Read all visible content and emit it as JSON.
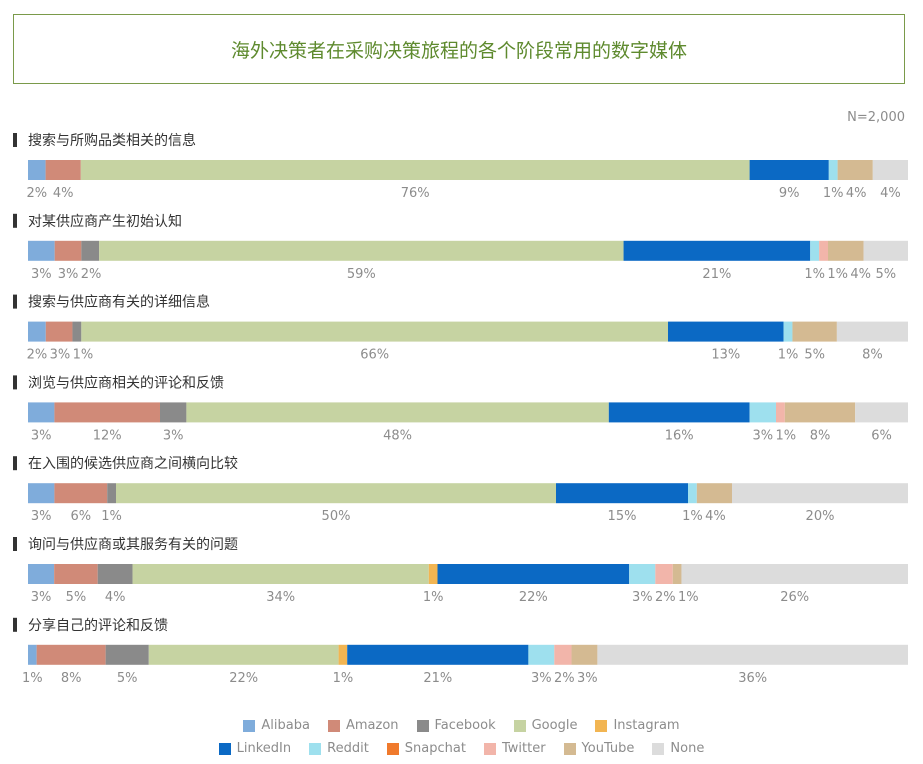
{
  "title": "海外决策者在采购决策旅程的各个阶段常用的数字媒体",
  "note": "N=2,000",
  "chart_data": {
    "type": "bar",
    "orientation": "horizontal",
    "stacked": true,
    "percent": true,
    "title": "海外决策者在采购决策旅程的各个阶段常用的数字媒体",
    "legend_position": "bottom",
    "categories": [
      "搜索与所购品类相关的信息",
      "对某供应商产生初始认知",
      "搜索与供应商有关的详细信息",
      "浏览与供应商相关的评论和反馈",
      "在入围的候选供应商之间横向比较",
      "询问与供应商或其服务有关的问题",
      "分享自己的评论和反馈"
    ],
    "series": [
      {
        "name": "Alibaba",
        "color": "#7facdb",
        "values": [
          2,
          3,
          2,
          3,
          3,
          3,
          1
        ]
      },
      {
        "name": "Amazon",
        "color": "#d08a78",
        "values": [
          4,
          3,
          3,
          12,
          6,
          5,
          8
        ]
      },
      {
        "name": "Facebook",
        "color": "#8a8a8a",
        "values": [
          0,
          2,
          1,
          3,
          1,
          4,
          5
        ]
      },
      {
        "name": "Google",
        "color": "#c6d3a2",
        "values": [
          76,
          59,
          66,
          48,
          50,
          34,
          22
        ]
      },
      {
        "name": "Instagram",
        "color": "#f2b552",
        "values": [
          0,
          0,
          0,
          0,
          0,
          1,
          1
        ]
      },
      {
        "name": "LinkedIn",
        "color": "#0b69c4",
        "values": [
          9,
          21,
          13,
          16,
          15,
          22,
          21
        ]
      },
      {
        "name": "Reddit",
        "color": "#9ee0ee",
        "values": [
          1,
          1,
          1,
          3,
          1,
          3,
          3
        ]
      },
      {
        "name": "Snapchat",
        "color": "#f07a2c",
        "values": [
          0,
          0,
          0,
          0,
          0,
          0,
          0
        ]
      },
      {
        "name": "Twitter",
        "color": "#f2b5aa",
        "values": [
          0,
          1,
          0,
          1,
          0,
          2,
          2
        ]
      },
      {
        "name": "YouTube",
        "color": "#d4ba92",
        "values": [
          4,
          4,
          5,
          8,
          4,
          1,
          3
        ]
      },
      {
        "name": "None",
        "color": "#dcdcdc",
        "values": [
          4,
          5,
          8,
          6,
          20,
          26,
          36
        ]
      }
    ],
    "xlim": [
      0,
      100
    ],
    "xlabel": "",
    "ylabel": ""
  }
}
